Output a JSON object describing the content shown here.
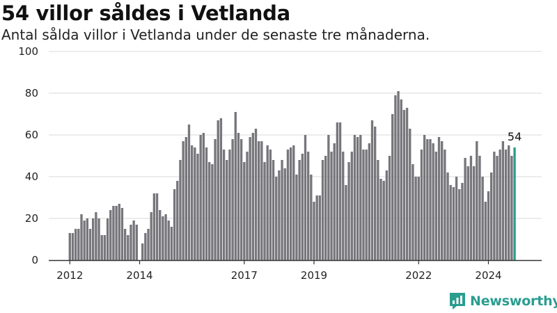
{
  "header": {
    "title": "54 villor såldes i Vetlanda",
    "subtitle": "Antal sålda villor i Vetlanda under de senaste tre månaderna."
  },
  "brand": {
    "name": "Newsworthy",
    "logo_icon": "newsworthy-logo-icon"
  },
  "colors": {
    "bar": "#77767b",
    "highlight": "#2a9d8f",
    "grid": "#d9d9d9",
    "axis": "#333333"
  },
  "chart_data": {
    "type": "bar",
    "x_start": "2012-01",
    "x_step": "month",
    "x_ticks": [
      "2012",
      "2014",
      "2017",
      "2019",
      "2022",
      "2024"
    ],
    "y_ticks": [
      "0",
      "20",
      "40",
      "60",
      "80",
      "100"
    ],
    "ylim": [
      0,
      100
    ],
    "grid": true,
    "values": [
      13,
      13,
      15,
      15,
      22,
      19,
      20,
      15,
      20,
      23,
      20,
      12,
      12,
      20,
      24,
      26,
      26,
      27,
      25,
      15,
      12,
      17,
      19,
      17,
      0,
      8,
      13,
      15,
      23,
      32,
      32,
      24,
      21,
      22,
      19,
      16,
      34,
      38,
      48,
      57,
      59,
      65,
      55,
      54,
      51,
      60,
      61,
      54,
      47,
      46,
      58,
      67,
      68,
      53,
      48,
      53,
      58,
      71,
      61,
      58,
      47,
      52,
      59,
      61,
      63,
      57,
      57,
      47,
      55,
      53,
      48,
      40,
      43,
      48,
      44,
      53,
      54,
      55,
      41,
      48,
      51,
      60,
      52,
      41,
      28,
      31,
      31,
      48,
      50,
      60,
      52,
      56,
      66,
      66,
      52,
      36,
      47,
      52,
      60,
      59,
      60,
      53,
      53,
      56,
      67,
      64,
      48,
      39,
      38,
      43,
      50,
      70,
      79,
      81,
      77,
      72,
      73,
      63,
      46,
      40,
      40,
      53,
      60,
      58,
      58,
      56,
      52,
      59,
      57,
      53,
      42,
      36,
      35,
      40,
      34,
      37,
      49,
      45,
      50,
      45,
      57,
      50,
      40,
      28,
      33,
      42,
      52,
      50,
      53,
      57,
      53,
      55,
      50,
      54
    ],
    "last_value_label": "54"
  }
}
